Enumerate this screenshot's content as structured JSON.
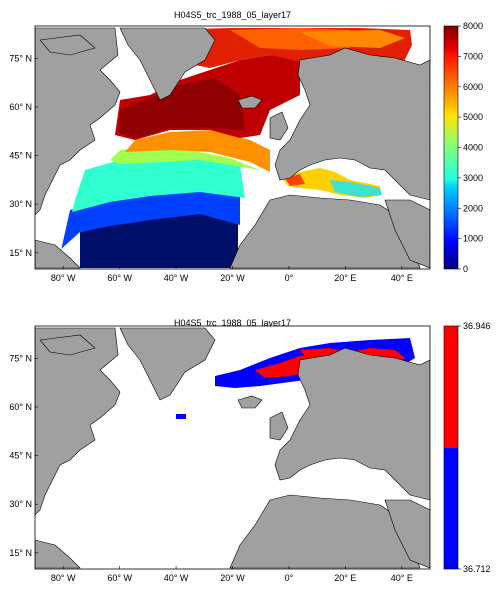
{
  "figure": {
    "panels": [
      {
        "title": "H04S5_trc_1988_05_layer17",
        "x_ticks": [
          {
            "lon": -80,
            "label": "80° W"
          },
          {
            "lon": -60,
            "label": "60° W"
          },
          {
            "lon": -40,
            "label": "40° W"
          },
          {
            "lon": -20,
            "label": "20° W"
          },
          {
            "lon": 0,
            "label": "0°"
          },
          {
            "lon": 20,
            "label": "20° E"
          },
          {
            "lon": 40,
            "label": "40° E"
          }
        ],
        "y_ticks": [
          {
            "lat": 75,
            "label": "75° N"
          },
          {
            "lat": 60,
            "label": "60° N"
          },
          {
            "lat": 45,
            "label": "45° N"
          },
          {
            "lat": 30,
            "label": "30° N"
          },
          {
            "lat": 15,
            "label": "15° N"
          }
        ],
        "colorbar": {
          "type": "continuous jet",
          "min": 0,
          "max": 8000,
          "tick_labels": [
            "0",
            "1000",
            "2000",
            "3000",
            "4000",
            "5000",
            "6000",
            "7000",
            "8000"
          ]
        },
        "colors": {
          "land": "#a0a0a0",
          "nodata": "#ffffff"
        }
      },
      {
        "title": "H04S5_trc_1988_05_layer17",
        "x_ticks": [
          {
            "lon": -80,
            "label": "80° W"
          },
          {
            "lon": -60,
            "label": "60° W"
          },
          {
            "lon": -40,
            "label": "40° W"
          },
          {
            "lon": -20,
            "label": "20° W"
          },
          {
            "lon": 0,
            "label": "0°"
          },
          {
            "lon": 20,
            "label": "20° E"
          },
          {
            "lon": 40,
            "label": "40° E"
          }
        ],
        "y_ticks": [
          {
            "lat": 75,
            "label": "75° N"
          },
          {
            "lat": 60,
            "label": "60° N"
          },
          {
            "lat": 45,
            "label": "45° N"
          },
          {
            "lat": 30,
            "label": "30° N"
          },
          {
            "lat": 15,
            "label": "15° N"
          }
        ],
        "colorbar": {
          "type": "two-class",
          "min": 36.712,
          "max": 36.946,
          "tick_labels": [
            "36.712",
            "36.946"
          ],
          "class_colors": [
            "#0000ff",
            "#ff0000"
          ]
        },
        "colors": {
          "land": "#a0a0a0",
          "nodata": "#ffffff"
        }
      }
    ],
    "map_extent": {
      "lon": [
        -90,
        50
      ],
      "lat": [
        10,
        85
      ]
    }
  }
}
